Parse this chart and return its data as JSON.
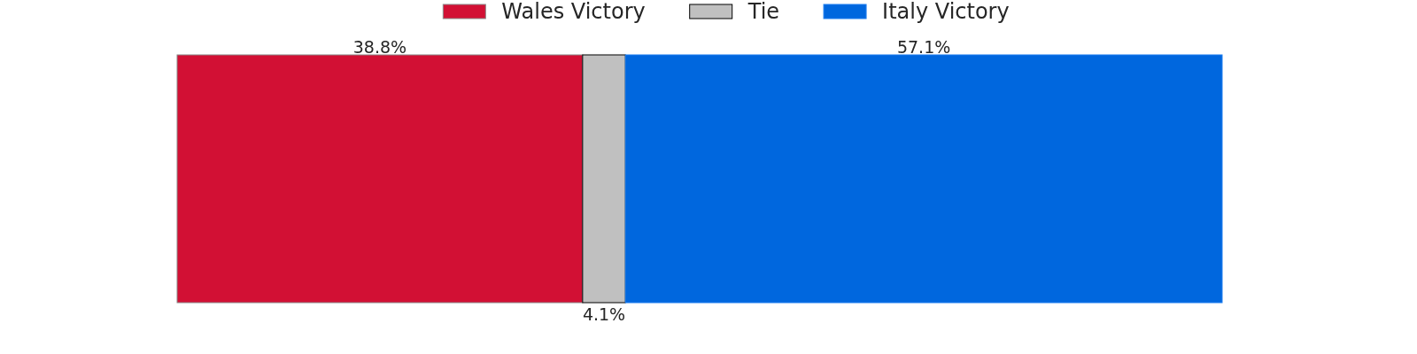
{
  "chart_data": {
    "type": "bar",
    "orientation": "horizontal",
    "stacked": true,
    "categories": [
      null
    ],
    "series": [
      {
        "name": "Wales Victory",
        "color": "#d21034",
        "values": [
          38.8
        ],
        "value_labels": [
          "38.8%"
        ]
      },
      {
        "name": "Tie",
        "color": "#c0c0c0",
        "values": [
          4.1
        ],
        "value_labels": [
          "4.1%"
        ]
      },
      {
        "name": "Italy Victory",
        "color": "#0067de",
        "values": [
          57.1
        ],
        "value_labels": [
          "57.1%"
        ]
      }
    ],
    "legend": "top"
  }
}
